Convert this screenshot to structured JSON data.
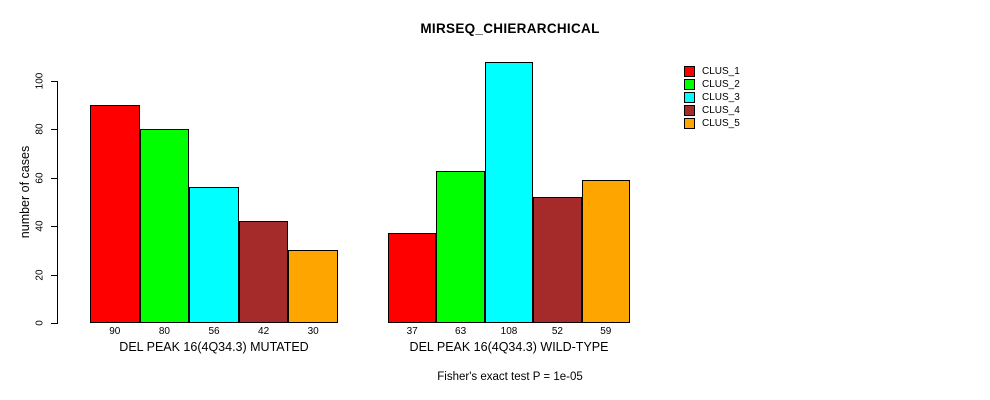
{
  "chart_data": {
    "type": "bar",
    "title": "MIRSEQ_CHIERARCHICAL",
    "ylabel": "number of cases",
    "xlabel": "",
    "footnote": "Fisher's exact test P = 1e-05",
    "categories": [
      "DEL PEAK 16(4Q34.3) MUTATED",
      "DEL PEAK 16(4Q34.3) WILD-TYPE"
    ],
    "series": [
      {
        "name": "CLUS_1",
        "color": "#FF0000",
        "values": [
          90,
          37
        ]
      },
      {
        "name": "CLUS_2",
        "color": "#00FF00",
        "values": [
          80,
          63
        ]
      },
      {
        "name": "CLUS_3",
        "color": "#00FFFF",
        "values": [
          56,
          108
        ]
      },
      {
        "name": "CLUS_4",
        "color": "#A52A2A",
        "values": [
          42,
          52
        ]
      },
      {
        "name": "CLUS_5",
        "color": "#FFA500",
        "values": [
          30,
          59
        ]
      }
    ],
    "y_ticks": [
      0,
      20,
      40,
      60,
      80,
      100
    ],
    "ylim": [
      0,
      100
    ],
    "bar_value_labels_shown": true,
    "bar_border_color": "#000000",
    "legend_position": "right",
    "grid": false,
    "background_color": "#FFFFFF"
  }
}
